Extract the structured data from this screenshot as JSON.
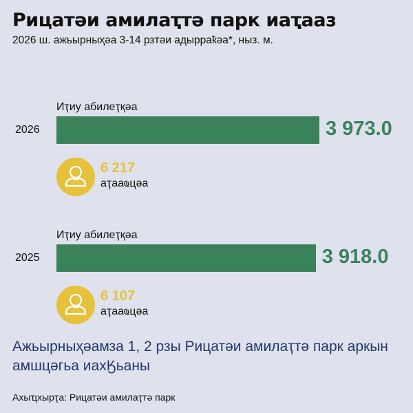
{
  "title": "Рицатәи амилаҭтә парк иаҭааз",
  "subtitle": "2026 ш. ажьырныҳәа 3-14 рзтәи адырраҟәа*, ныз. м.",
  "colors": {
    "bar": "#3a835a",
    "value": "#3a835a",
    "accent": "#e6c23c",
    "note": "#24386a",
    "background": "#dfe1ec"
  },
  "chart_data": {
    "type": "bar",
    "orientation": "horizontal",
    "categories": [
      "2026",
      "2025"
    ],
    "series_label": "Иҭиу абилеҭқәа",
    "values": [
      3973.0,
      3918.0
    ],
    "value_labels": [
      "3 973.0",
      "3 918.0"
    ],
    "visitors": {
      "icon": "person-icon",
      "label": "аҭааҩцәа",
      "values": [
        6217,
        6107
      ],
      "value_labels": [
        "6 217",
        "6 107"
      ]
    }
  },
  "note": "Ажьырныҳәамза 1, 2 рзы Рицатәи амилаҭтә парк аркын амшцәгьа иахӃьаны",
  "source": "Ахыҵхырҭа: Рицатәи амилаҭтә парк"
}
